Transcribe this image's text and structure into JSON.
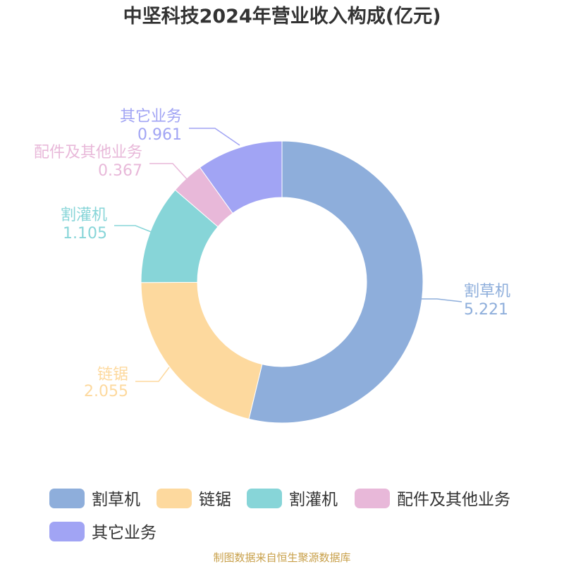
{
  "chart_data": {
    "type": "pie",
    "title": "中坚科技2024年营业收入构成(亿元)",
    "categories": [
      "割草机",
      "链锯",
      "割灌机",
      "配件及其他业务",
      "其它业务"
    ],
    "values": [
      5.221,
      2.055,
      1.105,
      0.367,
      0.961
    ],
    "value_labels": [
      "5.221",
      "2.055",
      "1.105",
      "0.367",
      "0.961"
    ],
    "colors": [
      "#8eaedb",
      "#fdd99e",
      "#87d5d8",
      "#e8b8d9",
      "#a1a4f4"
    ],
    "donut": true,
    "legend_position": "bottom"
  },
  "source": "制图数据来自恒生聚源数据库"
}
